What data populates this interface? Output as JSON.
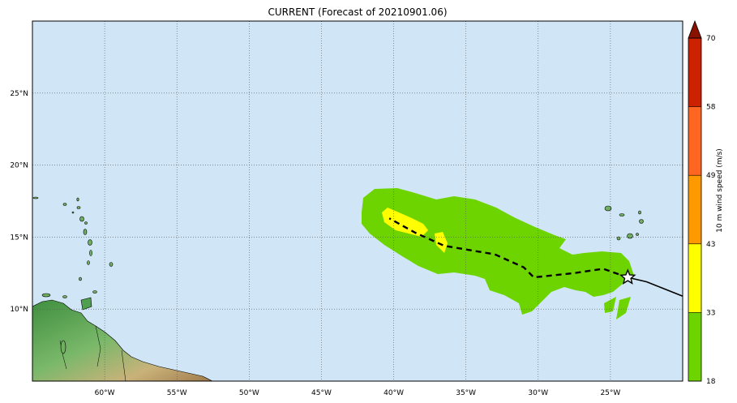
{
  "title": "CURRENT (Forecast of 20210901.06)",
  "map": {
    "lon_range": [
      -65,
      -20
    ],
    "lat_range": [
      5,
      30
    ],
    "lon_ticks": [
      {
        "value": -60,
        "label": "60°W"
      },
      {
        "value": -55,
        "label": "55°W"
      },
      {
        "value": -50,
        "label": "50°W"
      },
      {
        "value": -45,
        "label": "45°W"
      },
      {
        "value": -40,
        "label": "40°W"
      },
      {
        "value": -35,
        "label": "35°W"
      },
      {
        "value": -30,
        "label": "30°W"
      },
      {
        "value": -25,
        "label": "25°W"
      }
    ],
    "lat_ticks": [
      {
        "value": 10,
        "label": "10°N"
      },
      {
        "value": 15,
        "label": "15°N"
      },
      {
        "value": 20,
        "label": "20°N"
      },
      {
        "value": 25,
        "label": "25°N"
      }
    ],
    "ocean_color": "#d0e6f6",
    "wind_colors": {
      "low": "#6ed400",
      "mid": "#ffff00"
    }
  },
  "colorbar": {
    "label": "10 m wind speed (m/s)",
    "levels": [
      "18",
      "33",
      "43",
      "49",
      "58",
      "70"
    ],
    "colors": [
      "#6ed400",
      "#ffff00",
      "#ff9900",
      "#ff6622",
      "#cc2200",
      "#881100"
    ]
  },
  "track": {
    "past": [
      [
        -20,
        10.9
      ],
      [
        -21.5,
        11.5
      ],
      [
        -22.5,
        11.9
      ],
      [
        -23.8,
        12.2
      ]
    ],
    "forecast": [
      [
        -23.8,
        12.2
      ],
      [
        -25.5,
        12.8
      ],
      [
        -27.5,
        12.5
      ],
      [
        -30.3,
        12.2
      ],
      [
        -31,
        12.9
      ],
      [
        -33,
        13.8
      ],
      [
        -36.5,
        14.4
      ],
      [
        -38.5,
        15.3
      ],
      [
        -40.3,
        16.3
      ]
    ],
    "current_position": [
      -23.8,
      12.2
    ]
  }
}
